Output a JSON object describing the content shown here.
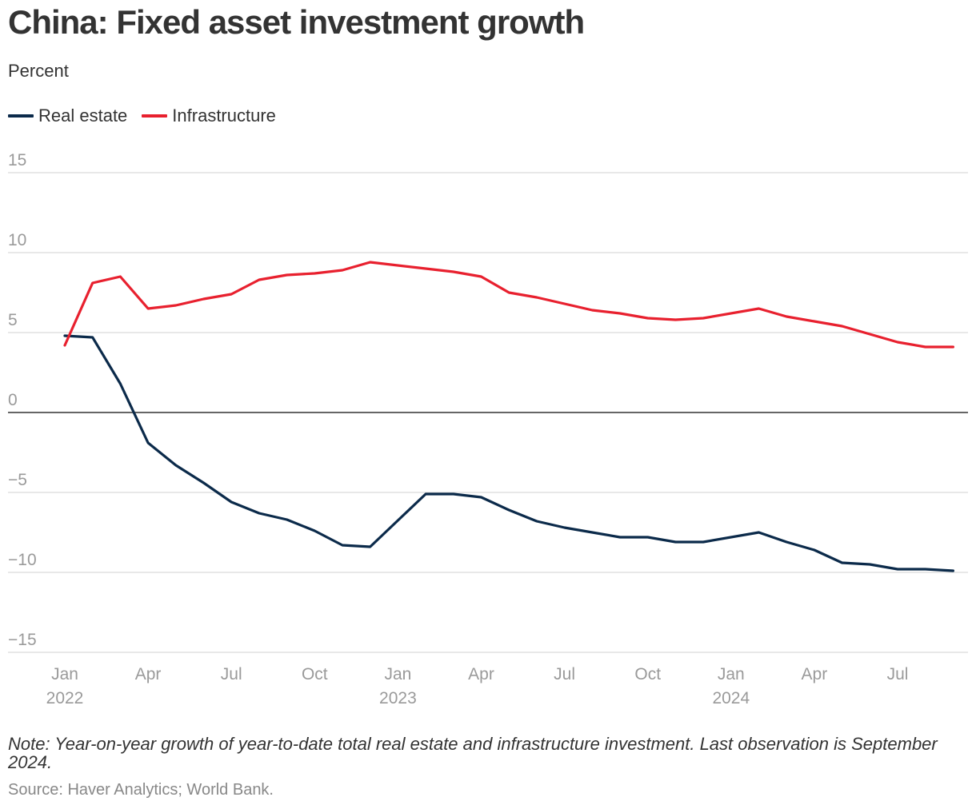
{
  "header": {
    "title": "China: Fixed asset investment growth",
    "subtitle": "Percent"
  },
  "legend": {
    "items": [
      {
        "label": "Real estate",
        "color": "#0b2a4a"
      },
      {
        "label": "Infrastructure",
        "color": "#e8202e"
      }
    ]
  },
  "chart_data": {
    "type": "line",
    "ylabel": "Percent",
    "ylim": [
      -15,
      15
    ],
    "y_ticks": [
      15,
      10,
      5,
      0,
      -5,
      -10,
      -15
    ],
    "y_tick_labels": [
      "15",
      "10",
      "5",
      "0",
      "−5",
      "−10",
      "−15"
    ],
    "grid": true,
    "legend_position": "top-left",
    "x": [
      "2022-01",
      "2022-02",
      "2022-03",
      "2022-04",
      "2022-05",
      "2022-06",
      "2022-07",
      "2022-08",
      "2022-09",
      "2022-10",
      "2022-11",
      "2022-12",
      "2023-01",
      "2023-02",
      "2023-03",
      "2023-04",
      "2023-05",
      "2023-06",
      "2023-07",
      "2023-08",
      "2023-09",
      "2023-10",
      "2023-11",
      "2023-12",
      "2024-01",
      "2024-02",
      "2024-03",
      "2024-04",
      "2024-05",
      "2024-06",
      "2024-07",
      "2024-08",
      "2024-09"
    ],
    "x_ticks": [
      {
        "date": "2022-01",
        "label": "Jan",
        "year": "2022"
      },
      {
        "date": "2022-04",
        "label": "Apr",
        "year": ""
      },
      {
        "date": "2022-07",
        "label": "Jul",
        "year": ""
      },
      {
        "date": "2022-10",
        "label": "Oct",
        "year": ""
      },
      {
        "date": "2023-01",
        "label": "Jan",
        "year": "2023"
      },
      {
        "date": "2023-04",
        "label": "Apr",
        "year": ""
      },
      {
        "date": "2023-07",
        "label": "Jul",
        "year": ""
      },
      {
        "date": "2023-10",
        "label": "Oct",
        "year": ""
      },
      {
        "date": "2024-01",
        "label": "Jan",
        "year": "2024"
      },
      {
        "date": "2024-04",
        "label": "Apr",
        "year": ""
      },
      {
        "date": "2024-07",
        "label": "Jul",
        "year": ""
      }
    ],
    "series": [
      {
        "name": "Real estate",
        "color": "#0b2a4a",
        "x": [
          "2022-01",
          "2022-02",
          "2022-03",
          "2022-04",
          "2022-05",
          "2022-06",
          "2022-07",
          "2022-08",
          "2022-09",
          "2022-10",
          "2022-11",
          "2022-12",
          "2023-02",
          "2023-03",
          "2023-04",
          "2023-05",
          "2023-06",
          "2023-07",
          "2023-08",
          "2023-09",
          "2023-10",
          "2023-11",
          "2023-12",
          "2024-02",
          "2024-03",
          "2024-04",
          "2024-05",
          "2024-06",
          "2024-07",
          "2024-08",
          "2024-09"
        ],
        "values": [
          4.8,
          4.7,
          1.8,
          -1.9,
          -3.3,
          -4.4,
          -5.6,
          -6.3,
          -6.7,
          -7.4,
          -8.3,
          -8.4,
          -5.1,
          -5.1,
          -5.3,
          -6.1,
          -6.8,
          -7.2,
          -7.5,
          -7.8,
          -7.8,
          -8.1,
          -8.1,
          -7.5,
          -8.1,
          -8.6,
          -9.4,
          -9.5,
          -9.8,
          -9.8,
          -9.9
        ]
      },
      {
        "name": "Infrastructure",
        "color": "#e8202e",
        "x": [
          "2022-01",
          "2022-02",
          "2022-03",
          "2022-04",
          "2022-05",
          "2022-06",
          "2022-07",
          "2022-08",
          "2022-09",
          "2022-10",
          "2022-11",
          "2022-12",
          "2023-02",
          "2023-03",
          "2023-04",
          "2023-05",
          "2023-06",
          "2023-07",
          "2023-08",
          "2023-09",
          "2023-10",
          "2023-11",
          "2023-12",
          "2024-02",
          "2024-03",
          "2024-04",
          "2024-05",
          "2024-06",
          "2024-07",
          "2024-08",
          "2024-09"
        ],
        "values": [
          4.2,
          8.1,
          8.5,
          6.5,
          6.7,
          7.1,
          7.4,
          8.3,
          8.6,
          8.7,
          8.9,
          9.4,
          9.0,
          8.8,
          8.5,
          7.5,
          7.2,
          6.8,
          6.4,
          6.2,
          5.9,
          5.8,
          5.9,
          6.5,
          6.0,
          5.7,
          5.4,
          4.9,
          4.4,
          4.1,
          4.1
        ]
      }
    ]
  },
  "footer": {
    "note": "Note: Year-on-year growth of year-to-date total real estate and infrastructure investment. Last observation is September 2024.",
    "source": "Source: Haver Analytics; World Bank."
  }
}
